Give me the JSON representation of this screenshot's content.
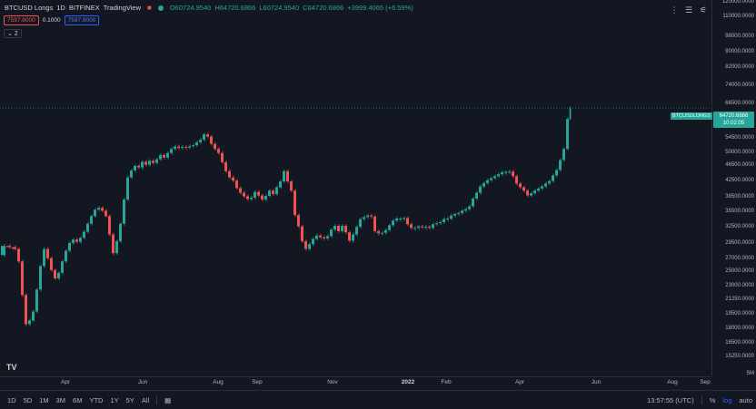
{
  "legend": {
    "symbol": "BTCUSD Longs",
    "interval": "1D",
    "exchange": "BITFINEX",
    "brand": "TradingView",
    "open": "O60724.9540",
    "high": "H64720.6866",
    "low": "L60724.9540",
    "close": "C64720.6866",
    "change": "+3999.4065 (+6.59%)",
    "indicator_a": "7597.8000",
    "indicator_mid": "0.1000",
    "indicator_b": "7597.9000",
    "collapse": "2"
  },
  "last_price": {
    "series_label": "BTCUSDLONGS",
    "value": "64720.6866",
    "countdown": "10:02:05",
    "color": "#26a69a"
  },
  "bottom_bar": {
    "ranges": [
      "1D",
      "5D",
      "1M",
      "3M",
      "6M",
      "YTD",
      "1Y",
      "5Y",
      "All"
    ],
    "clock": "13:57:55 (UTC)",
    "percent": "%",
    "log": "log",
    "auto": "auto"
  },
  "colors": {
    "background": "#131722",
    "up": "#26a69a",
    "down": "#ef5350"
  },
  "chart_data": {
    "type": "candlestick",
    "scale": "log",
    "y_range": [
      3500000,
      120000000
    ],
    "price_ticks": [
      "120000.0000",
      "110000.0000",
      "98000.0000",
      "90000.0000",
      "82000.0000",
      "74000.0000",
      "66500.0000",
      "60500.0000",
      "54500.0000",
      "50000.0000",
      "46500.0000",
      "42500.0000",
      "38500.0000",
      "35500.0000",
      "32500.0000",
      "29500.0000",
      "27000.0000",
      "25000.0000",
      "23000.0000",
      "21250.0000",
      "19500.0000",
      "18000.0000",
      "16500.0000",
      "15250.0000",
      "5M"
    ],
    "price_tick_values": [
      120000,
      110000,
      98000,
      90000,
      82000,
      74000,
      66500,
      60500,
      54500,
      50000,
      46500,
      42500,
      38500,
      35500,
      32500,
      29500,
      27000,
      25000,
      23000,
      21250,
      19500,
      18000,
      16500,
      15250,
      5000
    ],
    "time_ticks": [
      "Apr",
      "Jun",
      "Aug",
      "Sep",
      "Nov",
      "2022",
      "Feb",
      "Apr",
      "Jun",
      "Aug",
      "Sep"
    ],
    "bold_time_ticks": [
      "2022"
    ],
    "points": [
      [
        0,
        27500
      ],
      [
        6,
        29000
      ],
      [
        12,
        28800
      ],
      [
        18,
        28500
      ],
      [
        22,
        26500
      ],
      [
        26,
        21800
      ],
      [
        30,
        18400
      ],
      [
        34,
        18800
      ],
      [
        38,
        19800
      ],
      [
        42,
        22500
      ],
      [
        46,
        25800
      ],
      [
        50,
        28500
      ],
      [
        54,
        27000
      ],
      [
        58,
        25200
      ],
      [
        62,
        24000
      ],
      [
        66,
        24800
      ],
      [
        70,
        26500
      ],
      [
        74,
        28200
      ],
      [
        78,
        29500
      ],
      [
        82,
        30100
      ],
      [
        86,
        29700
      ],
      [
        90,
        30400
      ],
      [
        94,
        31500
      ],
      [
        98,
        33000
      ],
      [
        102,
        34500
      ],
      [
        106,
        35800
      ],
      [
        110,
        36200
      ],
      [
        114,
        35600
      ],
      [
        118,
        34500
      ],
      [
        122,
        31000
      ],
      [
        126,
        27800
      ],
      [
        130,
        29800
      ],
      [
        134,
        33000
      ],
      [
        138,
        38000
      ],
      [
        142,
        43200
      ],
      [
        146,
        45000
      ],
      [
        150,
        46200
      ],
      [
        154,
        45800
      ],
      [
        158,
        47300
      ],
      [
        162,
        46500
      ],
      [
        166,
        47600
      ],
      [
        170,
        47000
      ],
      [
        174,
        48000
      ],
      [
        178,
        49200
      ],
      [
        182,
        48500
      ],
      [
        186,
        49800
      ],
      [
        190,
        51000
      ],
      [
        194,
        51700
      ],
      [
        198,
        51300
      ],
      [
        202,
        51600
      ],
      [
        206,
        51400
      ],
      [
        210,
        51800
      ],
      [
        214,
        52100
      ],
      [
        218,
        53000
      ],
      [
        222,
        53800
      ],
      [
        226,
        55500
      ],
      [
        230,
        54800
      ],
      [
        234,
        52500
      ],
      [
        238,
        51000
      ],
      [
        242,
        49800
      ],
      [
        246,
        47200
      ],
      [
        250,
        44800
      ],
      [
        254,
        43200
      ],
      [
        258,
        42400
      ],
      [
        262,
        40600
      ],
      [
        266,
        39500
      ],
      [
        270,
        38700
      ],
      [
        274,
        38100
      ],
      [
        278,
        38400
      ],
      [
        282,
        39700
      ],
      [
        286,
        38900
      ],
      [
        290,
        38000
      ],
      [
        294,
        38800
      ],
      [
        298,
        40000
      ],
      [
        302,
        39200
      ],
      [
        306,
        40800
      ],
      [
        310,
        42200
      ],
      [
        314,
        44800
      ],
      [
        318,
        42200
      ],
      [
        322,
        40000
      ],
      [
        326,
        34700
      ],
      [
        330,
        32500
      ],
      [
        334,
        29800
      ],
      [
        338,
        28500
      ],
      [
        342,
        29300
      ],
      [
        346,
        30200
      ],
      [
        350,
        30800
      ],
      [
        354,
        30500
      ],
      [
        358,
        30300
      ],
      [
        362,
        30700
      ],
      [
        366,
        31900
      ],
      [
        370,
        32600
      ],
      [
        374,
        31600
      ],
      [
        378,
        32600
      ],
      [
        382,
        31400
      ],
      [
        386,
        29900
      ],
      [
        390,
        31000
      ],
      [
        394,
        32400
      ],
      [
        398,
        33900
      ],
      [
        402,
        34300
      ],
      [
        406,
        34600
      ],
      [
        410,
        34400
      ],
      [
        414,
        31600
      ],
      [
        418,
        31200
      ],
      [
        422,
        31300
      ],
      [
        426,
        31800
      ],
      [
        430,
        32700
      ],
      [
        434,
        33600
      ],
      [
        438,
        34000
      ],
      [
        442,
        34000
      ],
      [
        446,
        34100
      ],
      [
        450,
        32900
      ],
      [
        454,
        32200
      ],
      [
        458,
        32200
      ],
      [
        462,
        32500
      ],
      [
        466,
        32400
      ],
      [
        470,
        32400
      ],
      [
        474,
        32200
      ],
      [
        478,
        32900
      ],
      [
        482,
        33100
      ],
      [
        486,
        33300
      ],
      [
        490,
        33900
      ],
      [
        494,
        34000
      ],
      [
        498,
        34600
      ],
      [
        502,
        34900
      ],
      [
        506,
        35100
      ],
      [
        510,
        35600
      ],
      [
        514,
        35900
      ],
      [
        518,
        36500
      ],
      [
        522,
        38200
      ],
      [
        526,
        39500
      ],
      [
        530,
        41000
      ],
      [
        534,
        41800
      ],
      [
        538,
        42500
      ],
      [
        542,
        43000
      ],
      [
        546,
        43500
      ],
      [
        550,
        44000
      ],
      [
        554,
        44500
      ],
      [
        558,
        44600
      ],
      [
        562,
        44700
      ],
      [
        566,
        43500
      ],
      [
        570,
        41700
      ],
      [
        574,
        40800
      ],
      [
        578,
        40000
      ],
      [
        582,
        38900
      ],
      [
        586,
        39400
      ],
      [
        590,
        40000
      ],
      [
        594,
        40500
      ],
      [
        598,
        41000
      ],
      [
        602,
        41700
      ],
      [
        606,
        42300
      ],
      [
        610,
        43700
      ],
      [
        614,
        45100
      ],
      [
        618,
        47800
      ],
      [
        622,
        51000
      ],
      [
        626,
        60700
      ],
      [
        628,
        64720
      ]
    ]
  }
}
